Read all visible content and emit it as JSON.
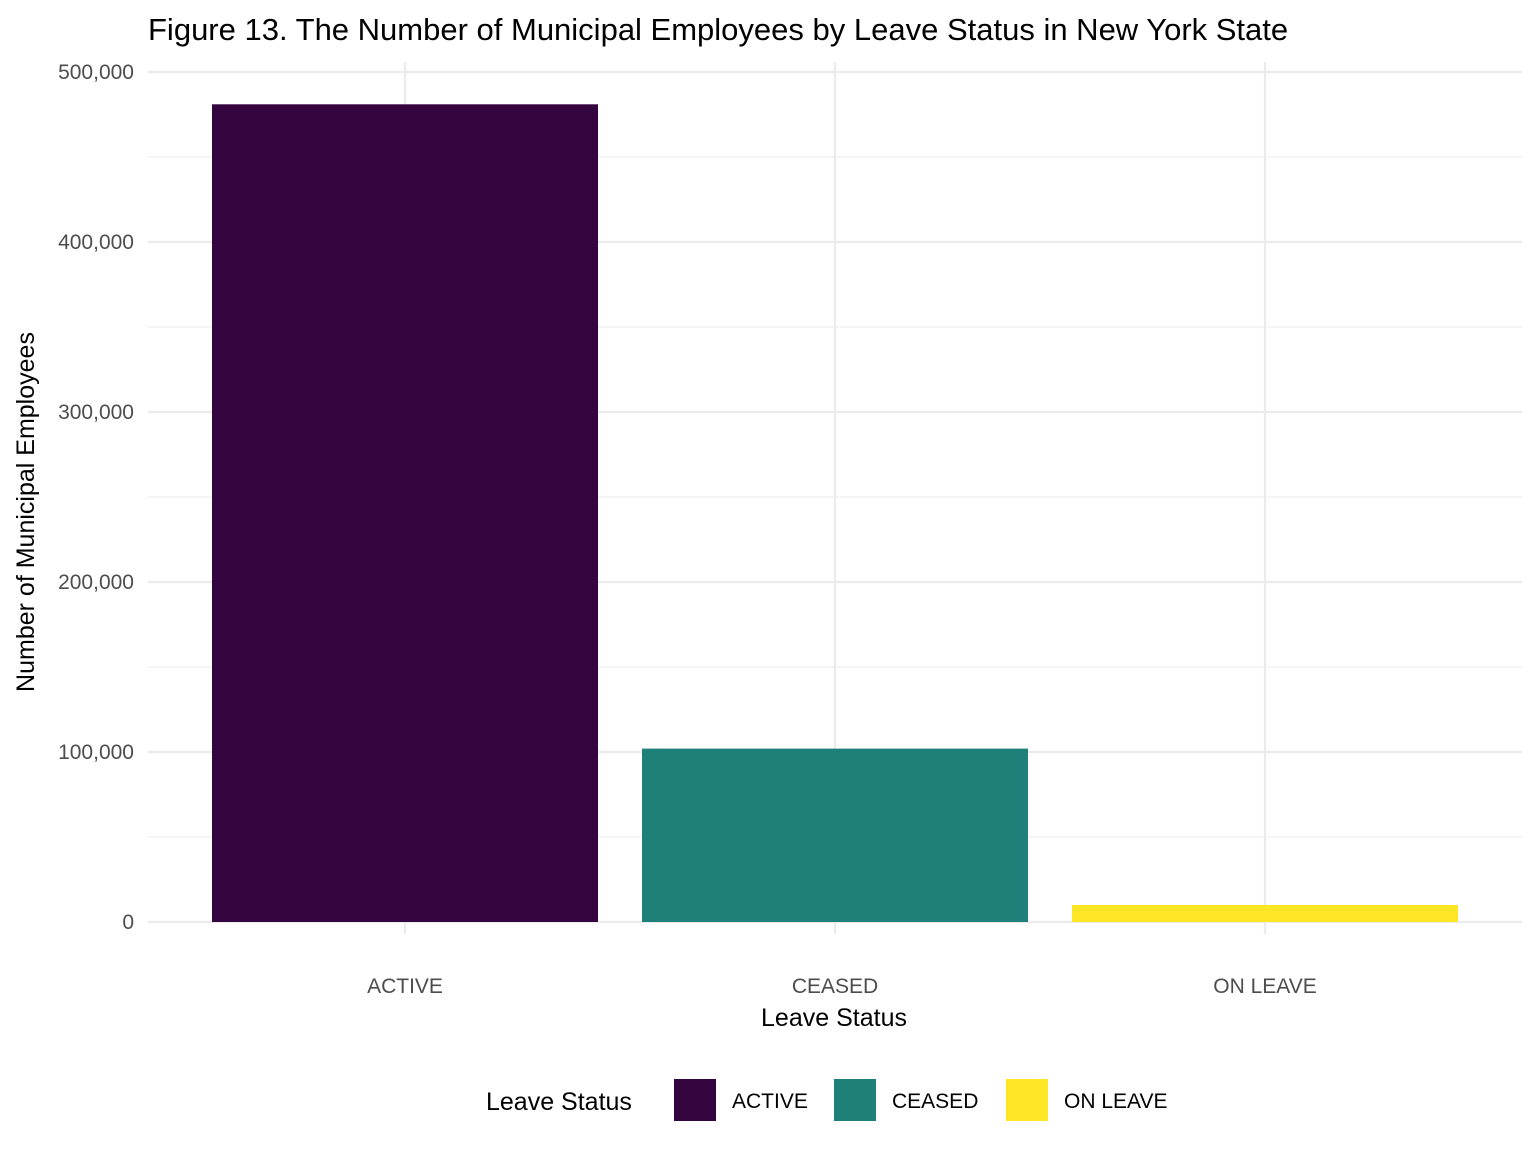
{
  "chart_data": {
    "type": "bar",
    "title": "Figure 13. The Number of Municipal Employees by Leave Status in New York State",
    "xlabel": "Leave Status",
    "ylabel": "Number of Municipal Employees",
    "categories": [
      "ACTIVE",
      "CEASED",
      "ON LEAVE"
    ],
    "values": [
      481000,
      102000,
      10000
    ],
    "colors": [
      "#350540",
      "#1f8079",
      "#fde725"
    ],
    "ylim": [
      0,
      500000
    ],
    "yticks": [
      0,
      100000,
      200000,
      300000,
      400000,
      500000
    ],
    "ytick_labels": [
      "0",
      "100,000",
      "200,000",
      "300,000",
      "400,000",
      "500,000"
    ],
    "grid": true,
    "legend": {
      "title": "Leave Status",
      "placement": "bottom",
      "entries": [
        "ACTIVE",
        "CEASED",
        "ON LEAVE"
      ]
    }
  }
}
